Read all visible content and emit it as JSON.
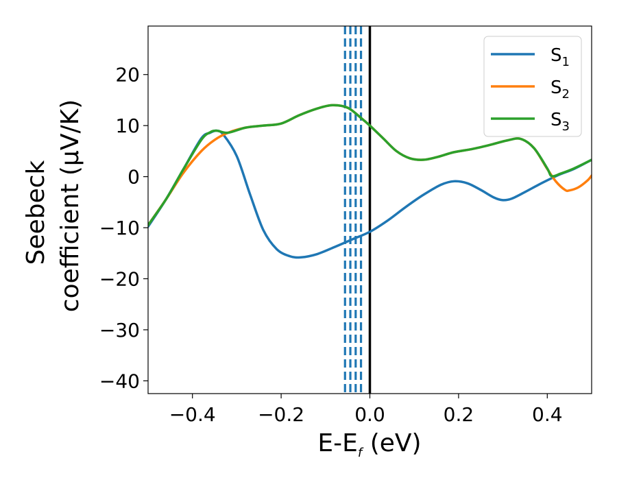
{
  "chart_data": {
    "type": "line",
    "xlabel_main": "E-E",
    "xlabel_sub": "f",
    "xlabel_unit": " (eV)",
    "ylabel_line1": "Seebeck",
    "ylabel_line2": "coefficient  (μV/K)",
    "xlim": [
      -0.5,
      0.5
    ],
    "ylim": [
      -42.5,
      29.5
    ],
    "x_ticks": [
      -0.4,
      -0.2,
      0.0,
      0.2,
      0.4
    ],
    "x_tick_labels": [
      "−0.4",
      "−0.2",
      "0.0",
      "0.2",
      "0.4"
    ],
    "y_ticks": [
      -40,
      -30,
      -20,
      -10,
      0,
      10,
      20
    ],
    "y_tick_labels": [
      "−40",
      "−30",
      "−20",
      "−10",
      "0",
      "10",
      "20"
    ],
    "grid": false,
    "legend_position": "top-right",
    "series": [
      {
        "name": "S",
        "subscript": "1",
        "color": "#1f77b4",
        "points": [
          [
            -0.5,
            -9.8
          ],
          [
            -0.46,
            -4.5
          ],
          [
            -0.42,
            1.5
          ],
          [
            -0.38,
            7.5
          ],
          [
            -0.36,
            8.6
          ],
          [
            -0.345,
            9.0
          ],
          [
            -0.33,
            8.2
          ],
          [
            -0.3,
            4.0
          ],
          [
            -0.27,
            -3.5
          ],
          [
            -0.24,
            -10.5
          ],
          [
            -0.21,
            -14.2
          ],
          [
            -0.18,
            -15.6
          ],
          [
            -0.155,
            -15.8
          ],
          [
            -0.12,
            -15.2
          ],
          [
            -0.08,
            -13.8
          ],
          [
            -0.04,
            -12.3
          ],
          [
            0.0,
            -10.8
          ],
          [
            0.04,
            -8.6
          ],
          [
            0.08,
            -6.0
          ],
          [
            0.12,
            -3.6
          ],
          [
            0.16,
            -1.6
          ],
          [
            0.19,
            -0.9
          ],
          [
            0.22,
            -1.3
          ],
          [
            0.25,
            -2.6
          ],
          [
            0.28,
            -4.1
          ],
          [
            0.3,
            -4.6
          ],
          [
            0.32,
            -4.3
          ],
          [
            0.35,
            -3.0
          ],
          [
            0.38,
            -1.6
          ],
          [
            0.41,
            -0.3
          ],
          [
            0.43,
            0.5
          ],
          [
            0.46,
            1.5
          ],
          [
            0.5,
            3.3
          ]
        ]
      },
      {
        "name": "S",
        "subscript": "2",
        "color": "#ff7f0e",
        "points": [
          [
            -0.5,
            -9.5
          ],
          [
            -0.46,
            -4.5
          ],
          [
            -0.42,
            0.8
          ],
          [
            -0.38,
            5.0
          ],
          [
            -0.35,
            7.2
          ],
          [
            -0.32,
            8.6
          ],
          [
            -0.28,
            9.6
          ],
          [
            -0.24,
            10.0
          ],
          [
            -0.2,
            10.4
          ],
          [
            -0.16,
            12.0
          ],
          [
            -0.12,
            13.3
          ],
          [
            -0.085,
            14.0
          ],
          [
            -0.05,
            13.5
          ],
          [
            -0.02,
            11.5
          ],
          [
            0.0,
            10.0
          ],
          [
            0.03,
            7.5
          ],
          [
            0.06,
            5.0
          ],
          [
            0.09,
            3.6
          ],
          [
            0.12,
            3.3
          ],
          [
            0.15,
            3.8
          ],
          [
            0.19,
            4.8
          ],
          [
            0.23,
            5.4
          ],
          [
            0.27,
            6.2
          ],
          [
            0.31,
            7.1
          ],
          [
            0.34,
            7.4
          ],
          [
            0.37,
            5.6
          ],
          [
            0.4,
            1.5
          ],
          [
            0.42,
            -1.0
          ],
          [
            0.44,
            -2.6
          ],
          [
            0.45,
            -2.7
          ],
          [
            0.47,
            -2.1
          ],
          [
            0.49,
            -0.8
          ],
          [
            0.5,
            0.2
          ]
        ]
      },
      {
        "name": "S",
        "subscript": "3",
        "color": "#2ca02c",
        "points": [
          [
            -0.5,
            -9.5
          ],
          [
            -0.46,
            -4.5
          ],
          [
            -0.42,
            1.5
          ],
          [
            -0.38,
            7.2
          ],
          [
            -0.36,
            8.7
          ],
          [
            -0.345,
            9.0
          ],
          [
            -0.32,
            8.6
          ],
          [
            -0.28,
            9.6
          ],
          [
            -0.24,
            10.0
          ],
          [
            -0.2,
            10.4
          ],
          [
            -0.16,
            12.0
          ],
          [
            -0.12,
            13.3
          ],
          [
            -0.085,
            14.0
          ],
          [
            -0.05,
            13.5
          ],
          [
            -0.02,
            11.5
          ],
          [
            0.0,
            10.0
          ],
          [
            0.03,
            7.5
          ],
          [
            0.06,
            5.0
          ],
          [
            0.09,
            3.6
          ],
          [
            0.12,
            3.3
          ],
          [
            0.15,
            3.8
          ],
          [
            0.19,
            4.8
          ],
          [
            0.23,
            5.4
          ],
          [
            0.27,
            6.2
          ],
          [
            0.31,
            7.1
          ],
          [
            0.34,
            7.4
          ],
          [
            0.37,
            5.6
          ],
          [
            0.4,
            1.6
          ],
          [
            0.41,
            0.1
          ],
          [
            0.43,
            0.6
          ],
          [
            0.46,
            1.6
          ],
          [
            0.5,
            3.3
          ]
        ]
      }
    ],
    "vertical_lines": [
      {
        "x": -0.056,
        "style": "dashed",
        "color": "#1f77b4"
      },
      {
        "x": -0.044,
        "style": "dashed",
        "color": "#1f77b4"
      },
      {
        "x": -0.032,
        "style": "dashed",
        "color": "#1f77b4"
      },
      {
        "x": -0.02,
        "style": "dashed",
        "color": "#1f77b4"
      },
      {
        "x": 0.0,
        "style": "solid",
        "color": "#000000"
      }
    ]
  }
}
